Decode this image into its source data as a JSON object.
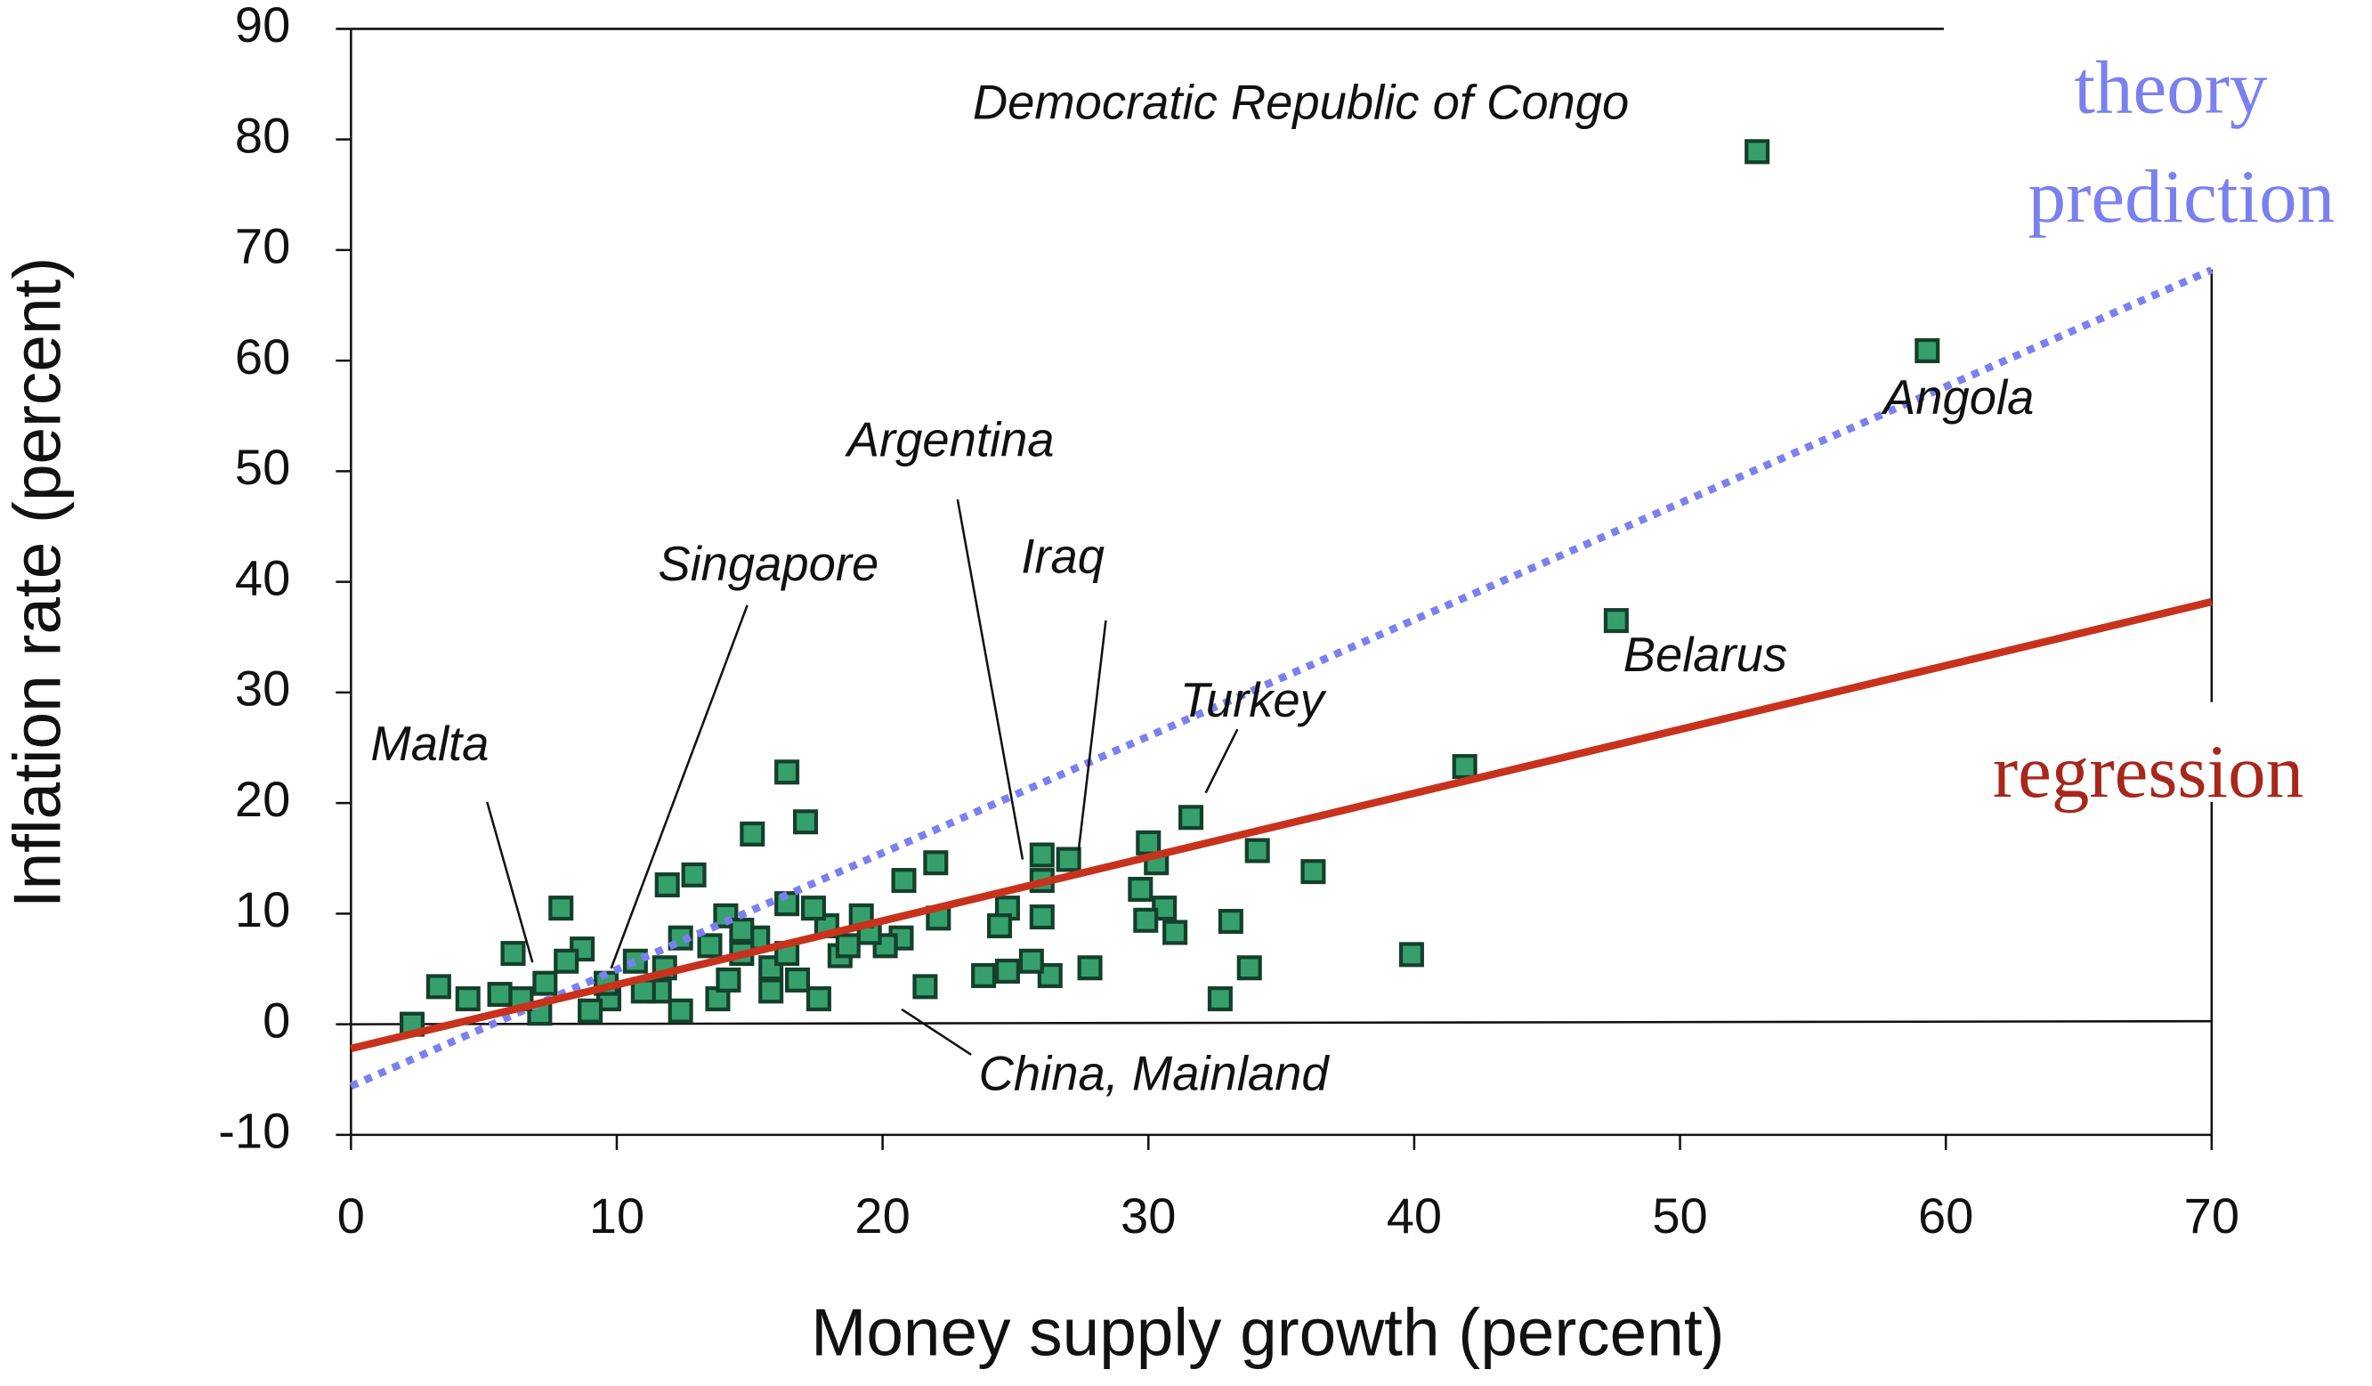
{
  "chart_data": {
    "type": "scatter",
    "x_label": "Money supply growth (percent)",
    "y_label": "Inflation rate (percent)",
    "xlim": [
      0,
      70
    ],
    "xticks": [
      0,
      10,
      20,
      30,
      40,
      50,
      60,
      70
    ],
    "ylim": [
      -10,
      90
    ],
    "yticks": [
      -10,
      0,
      10,
      20,
      30,
      40,
      50,
      60,
      70,
      80,
      90
    ],
    "color": "#36a06c",
    "x": [
      52.9,
      59.3,
      47.6,
      41.9,
      39.9,
      36.2,
      34.1,
      33.8,
      33.1,
      32.7,
      31.6,
      31.0,
      30.6,
      30.3,
      30.0,
      29.9,
      29.7,
      27.8,
      27.0,
      26.3,
      26.0,
      26.0,
      26.0,
      25.6,
      24.7,
      24.4,
      24.7,
      23.8,
      22.0,
      22.1,
      21.6,
      20.8,
      20.7,
      20.1,
      19.5,
      19.2,
      18.4,
      17.9,
      17.6,
      17.1,
      16.4,
      17.4,
      16.4,
      15.8,
      15.1,
      15.3,
      14.7,
      14.1,
      13.8,
      14.2,
      12.9,
      11.9,
      12.4,
      11.8,
      12.4,
      11.6,
      10.7,
      9.7,
      9.0,
      8.7,
      8.1,
      7.9,
      7.3,
      7.1,
      6.1,
      5.6,
      4.4,
      3.3,
      2.3,
      16.8,
      15.8,
      18.7,
      13.5,
      9.6,
      11.0,
      6.4,
      16.4,
      14.7
    ],
    "values": [
      78.9,
      60.9,
      36.5,
      23.3,
      6.3,
      13.8,
      15.7,
      5.1,
      9.3,
      2.3,
      18.7,
      8.3,
      10.5,
      14.6,
      16.4,
      9.4,
      12.2,
      5.1,
      14.9,
      4.4,
      15.3,
      13.0,
      9.7,
      5.7,
      10.5,
      8.9,
      4.8,
      4.4,
      14.6,
      9.6,
      3.4,
      13.0,
      7.8,
      7.1,
      8.3,
      9.8,
      6.2,
      8.9,
      2.3,
      18.3,
      22.8,
      10.5,
      10.9,
      5.1,
      17.2,
      7.8,
      6.4,
      9.8,
      2.3,
      4.0,
      13.5,
      12.6,
      7.8,
      5.1,
      1.2,
      3.0,
      5.7,
      2.3,
      1.2,
      6.8,
      5.7,
      10.5,
      3.7,
      1.0,
      6.4,
      2.7,
      2.3,
      3.4,
      0.0,
      4.0,
      3.0,
      7.1,
      7.1,
      3.7,
      3.0,
      2.3,
      6.4,
      8.5
    ],
    "lines": [
      {
        "label": [
          "theory",
          "prediction"
        ],
        "color": "#7b80f0",
        "style": "dotted",
        "x": [
          0,
          70
        ],
        "values": [
          -5.6,
          68.2
        ]
      },
      {
        "label": [
          "regression"
        ],
        "color": "#c8321c",
        "label_color": "#a8261a",
        "style": "solid",
        "x": [
          0,
          70
        ],
        "values": [
          -2.2,
          38.2
        ]
      }
    ],
    "annotations": [
      "Democratic Republic of Congo",
      "Angola",
      "Belarus",
      "Turkey",
      "Iraq",
      "Argentina",
      "Singapore",
      "Malta",
      "China, Mainland"
    ]
  }
}
